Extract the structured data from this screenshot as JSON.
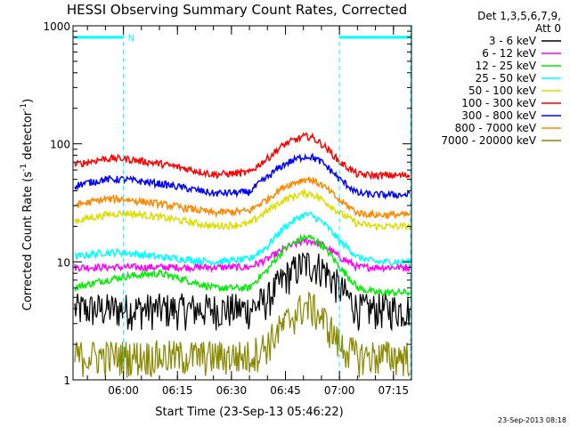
{
  "chart_data": {
    "type": "line",
    "title": "HESSI Observing Summary Count Rates, Corrected",
    "xlabel": "Start Time (23-Sep-13 05:46:22)",
    "ylabel_main": "Corrected Count Rate (s",
    "ylabel_sup1": "-1",
    "ylabel_mid": " detector",
    "ylabel_sup2": "-1",
    "ylabel_end": ")",
    "yscale": "log",
    "ylim": [
      1,
      1000
    ],
    "xlim_min": [
      -14,
      80
    ],
    "x_tick_labels": [
      "06:00",
      "06:15",
      "06:30",
      "06:45",
      "07:00",
      "07:15"
    ],
    "x_tick_minutes": [
      0,
      15,
      30,
      45,
      60,
      75
    ],
    "y_tick_labels": [
      "1",
      "10",
      "100",
      "1000"
    ],
    "y_tick_values": [
      1,
      10,
      100,
      1000
    ],
    "grid": false,
    "legend_placement": "outside-right",
    "legend_header": [
      "Det 1,3,5,6,7,9,",
      "Att 0"
    ],
    "night_marker_label": "N",
    "night_interval_min": [
      0,
      60
    ],
    "timestamp": "23-Sep-2013 08:18",
    "series": [
      {
        "name": "3 - 6 keV",
        "color": "#000000",
        "x": [
          -14,
          -5,
          0,
          10,
          25,
          35,
          40,
          45,
          50,
          52,
          55,
          60,
          65,
          70,
          80
        ],
        "y": [
          4,
          4,
          4,
          4,
          4,
          4,
          4.8,
          7.5,
          9.6,
          9.6,
          9,
          6,
          4,
          4,
          4
        ]
      },
      {
        "name": "6 - 12 keV",
        "color": "#ff00ff",
        "x": [
          -14,
          -5,
          0,
          10,
          25,
          35,
          40,
          45,
          50,
          52,
          55,
          60,
          65,
          70,
          80
        ],
        "y": [
          9,
          9,
          9,
          9,
          9,
          9,
          10.5,
          13,
          15,
          15,
          14,
          11,
          9,
          9,
          9
        ]
      },
      {
        "name": "12 - 25 keV",
        "color": "#00ee00",
        "x": [
          -14,
          -5,
          0,
          10,
          25,
          35,
          40,
          45,
          50,
          52,
          55,
          60,
          65,
          70,
          80
        ],
        "y": [
          6,
          7,
          7.5,
          8,
          6,
          6,
          8.5,
          13,
          16,
          16,
          14,
          9,
          6,
          5.5,
          5.5
        ]
      },
      {
        "name": "25 - 50 keV",
        "color": "#00ffff",
        "x": [
          -14,
          -5,
          0,
          10,
          25,
          35,
          40,
          45,
          50,
          52,
          55,
          60,
          65,
          70,
          80
        ],
        "y": [
          11,
          12,
          12,
          11,
          10,
          10.5,
          13.5,
          20,
          25,
          25,
          22,
          15,
          11,
          10,
          10
        ]
      },
      {
        "name": "50 - 100 keV",
        "color": "#dddd00",
        "x": [
          -14,
          -5,
          0,
          10,
          25,
          35,
          40,
          45,
          50,
          52,
          55,
          60,
          65,
          70,
          80
        ],
        "y": [
          22,
          25,
          26,
          24,
          20,
          21,
          27,
          34,
          38,
          38,
          34,
          26,
          21,
          20,
          20
        ]
      },
      {
        "name": "100 - 300 keV",
        "color": "#ff0000",
        "x": [
          -14,
          -5,
          0,
          10,
          25,
          35,
          40,
          45,
          50,
          52,
          55,
          60,
          65,
          70,
          80
        ],
        "y": [
          66,
          75,
          75,
          68,
          55,
          57,
          75,
          100,
          115,
          115,
          100,
          70,
          55,
          54,
          54
        ]
      },
      {
        "name": "300 - 800 keV",
        "color": "#0000ff",
        "x": [
          -14,
          -5,
          0,
          10,
          25,
          35,
          40,
          45,
          50,
          52,
          55,
          60,
          65,
          70,
          80
        ],
        "y": [
          44,
          50,
          50,
          46,
          38,
          39,
          52,
          68,
          78,
          78,
          70,
          50,
          38,
          37,
          37
        ]
      },
      {
        "name": "800 - 7000 keV",
        "color": "#ff8800",
        "x": [
          -14,
          -5,
          0,
          10,
          25,
          35,
          40,
          45,
          50,
          52,
          55,
          60,
          65,
          70,
          80
        ],
        "y": [
          30,
          34,
          34,
          31,
          26,
          27,
          34,
          44,
          50,
          50,
          45,
          33,
          26,
          25,
          25
        ]
      },
      {
        "name": "7000 - 20000 keV",
        "color": "#888800",
        "x": [
          -14,
          -5,
          0,
          10,
          25,
          35,
          40,
          45,
          50,
          52,
          55,
          60,
          65,
          70,
          80
        ],
        "y": [
          1.6,
          1.6,
          1.6,
          1.6,
          1.6,
          1.6,
          2,
          3,
          4.2,
          4.2,
          3.4,
          2,
          1.6,
          1.6,
          1.6
        ]
      }
    ]
  }
}
